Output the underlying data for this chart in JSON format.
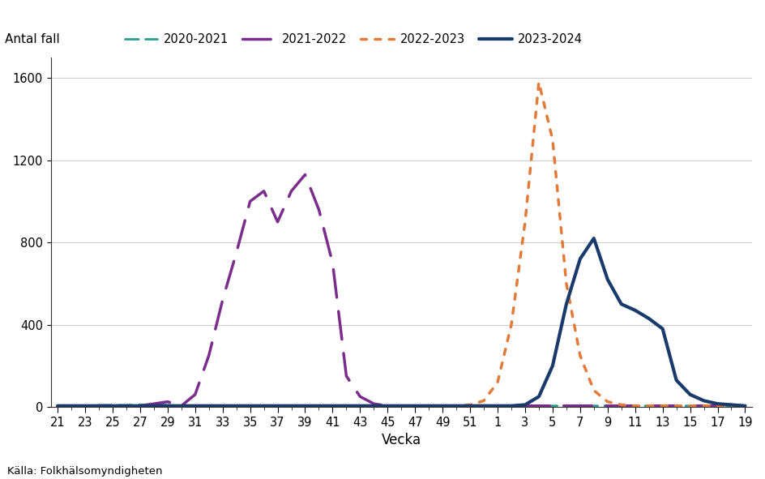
{
  "title": "Antal fall",
  "xlabel": "Vecka",
  "source": "Källa: Folkhälsomyndigheten",
  "ylim": [
    0,
    1700
  ],
  "yticks": [
    0,
    400,
    800,
    1200,
    1600
  ],
  "x_labels": [
    "21",
    "23",
    "25",
    "27",
    "29",
    "31",
    "33",
    "35",
    "37",
    "39",
    "41",
    "43",
    "45",
    "47",
    "49",
    "51",
    "1",
    "3",
    "5",
    "7",
    "9",
    "11",
    "13",
    "15",
    "17",
    "19"
  ],
  "x_tick_every": 2,
  "series": [
    {
      "label": "2020-2021",
      "color": "#2a9d8f",
      "linestyle": "dashed",
      "dash_pattern": [
        6,
        3
      ],
      "linewidth": 2.0,
      "data_y": [
        5,
        5,
        5,
        8,
        8,
        8,
        10,
        12,
        8,
        5,
        5,
        5,
        5,
        5,
        5,
        5,
        5,
        5,
        5,
        5,
        5,
        5,
        5,
        5,
        5,
        5,
        5,
        5,
        5,
        5,
        5,
        5,
        5,
        5,
        5,
        5,
        5,
        5,
        5,
        5,
        5,
        5,
        5,
        5,
        5,
        5,
        5,
        5,
        5,
        5,
        5
      ]
    },
    {
      "label": "2021-2022",
      "color": "#7b2d8b",
      "linestyle": "dashed",
      "dash_pattern": [
        10,
        5
      ],
      "linewidth": 2.5,
      "data_y": [
        5,
        5,
        5,
        5,
        5,
        5,
        5,
        15,
        25,
        5,
        60,
        250,
        520,
        750,
        1000,
        1050,
        900,
        1050,
        1130,
        960,
        700,
        150,
        50,
        15,
        5,
        5,
        5,
        5,
        5,
        5,
        5,
        5,
        5,
        5,
        5,
        5,
        5,
        5,
        5,
        5,
        5,
        5,
        5,
        5,
        5,
        5,
        5,
        5,
        5,
        5,
        5
      ]
    },
    {
      "label": "2022-2023",
      "color": "#e07b39",
      "linestyle": "dotted",
      "dot_pattern": [
        2,
        3
      ],
      "linewidth": 2.5,
      "data_y": [
        5,
        5,
        5,
        5,
        5,
        5,
        5,
        5,
        5,
        5,
        5,
        5,
        5,
        5,
        5,
        5,
        5,
        5,
        5,
        5,
        5,
        5,
        5,
        5,
        5,
        5,
        5,
        5,
        5,
        5,
        10,
        30,
        120,
        400,
        900,
        1580,
        1300,
        600,
        250,
        80,
        25,
        10,
        5,
        5,
        5,
        5,
        5,
        5,
        5,
        5,
        5
      ]
    },
    {
      "label": "2023-2024",
      "color": "#1a3a6b",
      "linestyle": "solid",
      "linewidth": 3.0,
      "data_y": [
        5,
        5,
        5,
        5,
        5,
        5,
        5,
        5,
        5,
        5,
        5,
        5,
        5,
        5,
        5,
        5,
        5,
        5,
        5,
        5,
        5,
        5,
        5,
        5,
        5,
        5,
        5,
        5,
        5,
        5,
        5,
        5,
        5,
        5,
        10,
        50,
        200,
        500,
        720,
        820,
        620,
        500,
        470,
        430,
        380,
        130,
        60,
        30,
        15,
        10,
        5
      ]
    }
  ]
}
